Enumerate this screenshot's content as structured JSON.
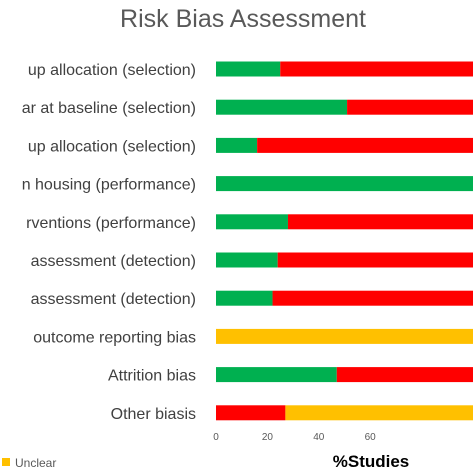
{
  "chart_data": {
    "type": "bar",
    "stacked": "percent",
    "orientation": "horizontal",
    "title": "Risk Bias Assessment",
    "xlabel": "%Studies",
    "ylabel": "",
    "xlim": [
      0,
      100
    ],
    "xticks": [
      0,
      20,
      40,
      60
    ],
    "grid": false,
    "categories": [
      "up allocation (selection)",
      "ar at baseline (selection)",
      "up allocation (selection)",
      "n housing (performance)",
      "rventions (performance)",
      "assessment (detection)",
      "assessment (detection)",
      "outcome reporting bias",
      "Attrition bias",
      "Other biasis"
    ],
    "series": [
      {
        "name": "",
        "color": "#00B050",
        "values": [
          25,
          51,
          16,
          100,
          28,
          24,
          22,
          0,
          47,
          0
        ]
      },
      {
        "name": "",
        "color": "#FF0000",
        "values": [
          75,
          49,
          84,
          0,
          72,
          76,
          78,
          0,
          53,
          27
        ]
      },
      {
        "name": "Unclear",
        "color": "#FFC000",
        "values": [
          0,
          0,
          0,
          0,
          0,
          0,
          0,
          100,
          0,
          73
        ]
      }
    ],
    "legend": {
      "position": "bottom",
      "visible_entries": [
        "Unclear"
      ]
    }
  }
}
